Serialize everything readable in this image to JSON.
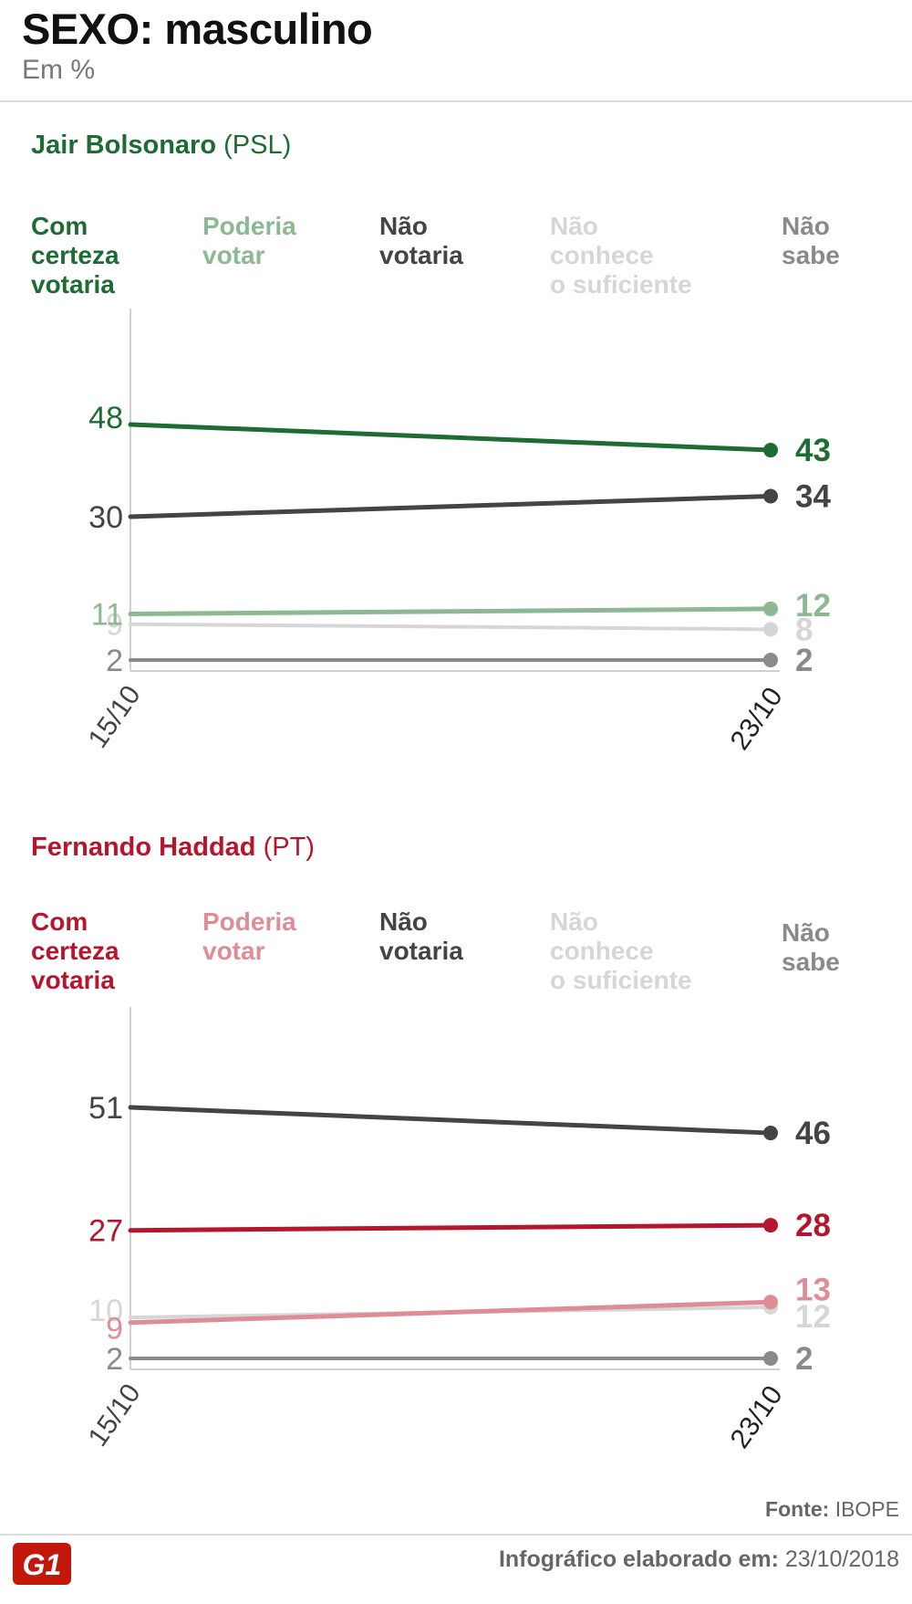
{
  "title": "SEXO: masculino",
  "subtitle": "Em %",
  "source_label": "Fonte:",
  "source_value": "IBOPE",
  "made_label": "Infográfico elaborado em:",
  "made_value": "23/10/2018",
  "logo_text": "G1",
  "chart_data": [
    {
      "type": "line",
      "candidate": "Jair Bolsonaro",
      "party": "(PSL)",
      "accent": "#1e6b33",
      "x": [
        "15/10",
        "23/10"
      ],
      "series": [
        {
          "name": "Com\ncerteza\nvotaria",
          "color": "#1e6b33",
          "values": [
            48,
            43
          ]
        },
        {
          "name": "Poderia\nvotar",
          "color": "#8db894",
          "values": [
            11,
            12
          ]
        },
        {
          "name": "Não\nvotaria",
          "color": "#444444",
          "values": [
            30,
            34
          ]
        },
        {
          "name": "Não\nconhece\no suficiente",
          "color": "#d6d6d6",
          "values": [
            9,
            8
          ]
        },
        {
          "name": "Não\nsabe",
          "color": "#8a8a8a",
          "values": [
            2,
            2
          ]
        }
      ]
    },
    {
      "type": "line",
      "candidate": "Fernando Haddad",
      "party": "(PT)",
      "accent": "#b5162d",
      "x": [
        "15/10",
        "23/10"
      ],
      "series": [
        {
          "name": "Com\ncerteza\nvotaria",
          "color": "#b5162d",
          "values": [
            27,
            28
          ]
        },
        {
          "name": "Poderia\nvotar",
          "color": "#df8c97",
          "values": [
            9,
            13
          ]
        },
        {
          "name": "Não\nvotaria",
          "color": "#444444",
          "values": [
            51,
            46
          ]
        },
        {
          "name": "Não\nconhece\no suficiente",
          "color": "#d6d6d6",
          "values": [
            10,
            12
          ]
        },
        {
          "name": "Não\nsabe",
          "color": "#8a8a8a",
          "values": [
            2,
            2
          ]
        }
      ]
    }
  ]
}
